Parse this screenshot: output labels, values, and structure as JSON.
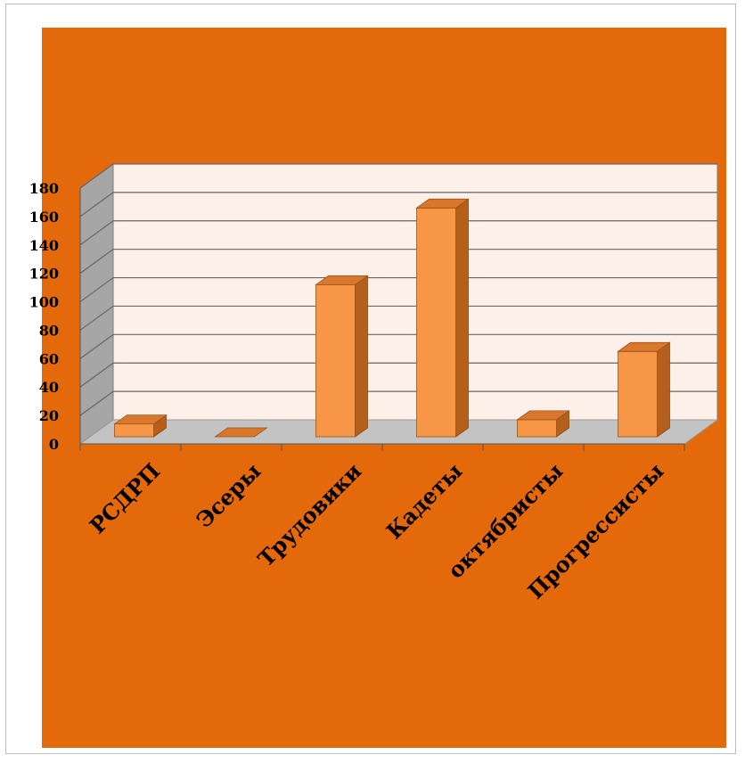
{
  "chart_data": {
    "type": "bar",
    "style": "3d-column",
    "title": "",
    "xlabel": "",
    "ylabel": "",
    "categories": [
      "РСДРП",
      "Эсеры",
      "Трудовики",
      "Кадеты",
      "октябристы",
      "Прогрессисты"
    ],
    "values": [
      9,
      0,
      107,
      161,
      12,
      60
    ],
    "ylim": [
      0,
      180
    ],
    "yticks": [
      0,
      20,
      40,
      60,
      80,
      100,
      120,
      140,
      160,
      180
    ],
    "grid": true,
    "legend": "none",
    "colors": {
      "background": "#e3690b",
      "plot_back_wall": "#fdf0e8",
      "plot_side_wall": "#a6a6a6",
      "plot_floor": "#c3c3c3",
      "gridline": "#666666",
      "bar_front": "#f79646",
      "bar_side": "#b45f1c",
      "bar_top": "#d9772c",
      "text": "#000000"
    }
  }
}
